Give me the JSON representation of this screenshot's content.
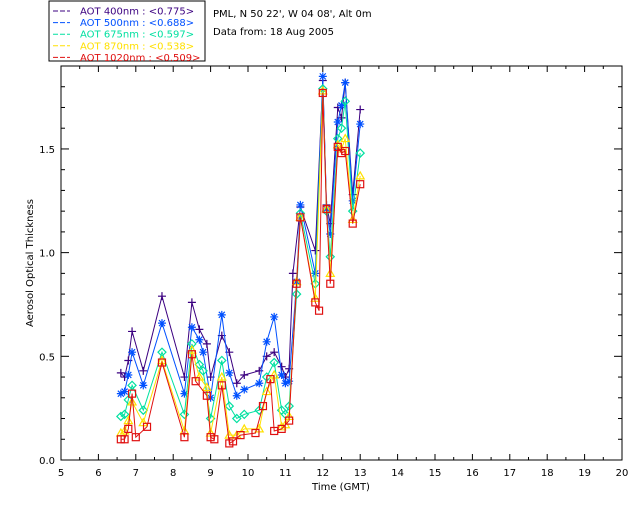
{
  "header": {
    "site": "PML, N 50 22', W 04 08', Alt 0m",
    "date": "Data from: 18 Aug 2005"
  },
  "legend": [
    {
      "label": "AOT  400nm : <0.775>",
      "color": "#3b0080"
    },
    {
      "label": "AOT  500nm : <0.688>",
      "color": "#0050ff"
    },
    {
      "label": "AOT  675nm : <0.597>",
      "color": "#00e0a0"
    },
    {
      "label": "AOT  870nm : <0.538>",
      "color": "#ffe000"
    },
    {
      "label": "AOT 1020nm : <0.509>",
      "color": "#e01010"
    }
  ],
  "chart_data": {
    "type": "line",
    "xlabel": "Time (GMT)",
    "ylabel": "Aerosol Optical Thickness",
    "xlim": [
      5,
      20
    ],
    "ylim": [
      0,
      1.9
    ],
    "xticks": [
      "5",
      "6",
      "7",
      "8",
      "9",
      "10",
      "11",
      "12",
      "13",
      "14",
      "15",
      "16",
      "17",
      "18",
      "19",
      "20"
    ],
    "yticks": [
      "0.0",
      "0.5",
      "1.0",
      "1.5"
    ],
    "series": [
      {
        "name": "AOT  400nm : <0.775>",
        "color": "#3b0080",
        "marker": "plus",
        "points": [
          [
            6.6,
            0.42
          ],
          [
            6.7,
            0.4
          ],
          [
            6.8,
            0.48
          ],
          [
            6.9,
            0.62
          ],
          [
            7.2,
            0.43
          ],
          [
            7.7,
            0.79
          ],
          [
            8.3,
            0.4
          ],
          [
            8.5,
            0.76
          ],
          [
            8.7,
            0.63
          ],
          [
            8.9,
            0.56
          ],
          [
            9.0,
            0.4
          ],
          [
            9.3,
            0.6
          ],
          [
            9.5,
            0.52
          ],
          [
            9.7,
            0.37
          ],
          [
            9.9,
            0.41
          ],
          [
            10.3,
            0.43
          ],
          [
            10.5,
            0.5
          ],
          [
            10.7,
            0.52
          ],
          [
            10.9,
            0.45
          ],
          [
            11.0,
            0.4
          ],
          [
            11.1,
            0.44
          ],
          [
            11.2,
            0.9
          ],
          [
            11.4,
            1.22
          ],
          [
            11.8,
            1.01
          ],
          [
            12.0,
            1.83
          ],
          [
            12.1,
            1.23
          ],
          [
            12.2,
            1.14
          ],
          [
            12.4,
            1.7
          ],
          [
            12.5,
            1.65
          ],
          [
            12.6,
            1.82
          ],
          [
            12.8,
            1.28
          ],
          [
            13.0,
            1.69
          ]
        ]
      },
      {
        "name": "AOT  500nm : <0.688>",
        "color": "#0050ff",
        "marker": "star",
        "points": [
          [
            6.6,
            0.32
          ],
          [
            6.7,
            0.33
          ],
          [
            6.8,
            0.41
          ],
          [
            6.9,
            0.52
          ],
          [
            7.2,
            0.36
          ],
          [
            7.7,
            0.66
          ],
          [
            8.3,
            0.32
          ],
          [
            8.5,
            0.64
          ],
          [
            8.7,
            0.58
          ],
          [
            8.8,
            0.52
          ],
          [
            9.0,
            0.3
          ],
          [
            9.3,
            0.7
          ],
          [
            9.5,
            0.42
          ],
          [
            9.7,
            0.31
          ],
          [
            9.9,
            0.34
          ],
          [
            10.3,
            0.37
          ],
          [
            10.5,
            0.57
          ],
          [
            10.7,
            0.69
          ],
          [
            10.9,
            0.41
          ],
          [
            11.0,
            0.37
          ],
          [
            11.1,
            0.38
          ],
          [
            11.3,
            0.86
          ],
          [
            11.4,
            1.23
          ],
          [
            11.8,
            0.9
          ],
          [
            12.0,
            1.85
          ],
          [
            12.1,
            1.21
          ],
          [
            12.2,
            1.09
          ],
          [
            12.4,
            1.63
          ],
          [
            12.5,
            1.71
          ],
          [
            12.6,
            1.82
          ],
          [
            12.8,
            1.25
          ],
          [
            13.0,
            1.62
          ]
        ]
      },
      {
        "name": "AOT  675nm : <0.597>",
        "color": "#00e0a0",
        "marker": "diamond",
        "points": [
          [
            6.6,
            0.21
          ],
          [
            6.7,
            0.22
          ],
          [
            6.8,
            0.29
          ],
          [
            6.9,
            0.36
          ],
          [
            7.2,
            0.24
          ],
          [
            7.7,
            0.52
          ],
          [
            8.3,
            0.22
          ],
          [
            8.5,
            0.56
          ],
          [
            8.7,
            0.46
          ],
          [
            8.8,
            0.43
          ],
          [
            9.0,
            0.2
          ],
          [
            9.3,
            0.48
          ],
          [
            9.5,
            0.26
          ],
          [
            9.7,
            0.2
          ],
          [
            9.9,
            0.22
          ],
          [
            10.3,
            0.24
          ],
          [
            10.5,
            0.4
          ],
          [
            10.7,
            0.47
          ],
          [
            10.9,
            0.24
          ],
          [
            11.0,
            0.22
          ],
          [
            11.1,
            0.26
          ],
          [
            11.3,
            0.8
          ],
          [
            11.4,
            1.19
          ],
          [
            11.8,
            0.85
          ],
          [
            12.0,
            1.79
          ],
          [
            12.1,
            1.2
          ],
          [
            12.2,
            0.98
          ],
          [
            12.4,
            1.55
          ],
          [
            12.5,
            1.6
          ],
          [
            12.6,
            1.73
          ],
          [
            12.8,
            1.2
          ],
          [
            13.0,
            1.48
          ]
        ]
      },
      {
        "name": "AOT  870nm : <0.538>",
        "color": "#ffe000",
        "marker": "triangle",
        "points": [
          [
            6.6,
            0.13
          ],
          [
            6.7,
            0.14
          ],
          [
            6.8,
            0.19
          ],
          [
            6.9,
            0.28
          ],
          [
            7.2,
            0.18
          ],
          [
            7.7,
            0.48
          ],
          [
            8.3,
            0.14
          ],
          [
            8.5,
            0.53
          ],
          [
            8.7,
            0.4
          ],
          [
            8.9,
            0.35
          ],
          [
            9.0,
            0.13
          ],
          [
            9.3,
            0.4
          ],
          [
            9.5,
            0.12
          ],
          [
            9.7,
            0.12
          ],
          [
            9.9,
            0.15
          ],
          [
            10.3,
            0.15
          ],
          [
            10.5,
            0.33
          ],
          [
            10.7,
            0.41
          ],
          [
            10.9,
            0.16
          ],
          [
            11.0,
            0.17
          ],
          [
            11.1,
            0.21
          ],
          [
            11.3,
            0.86
          ],
          [
            11.4,
            1.17
          ],
          [
            11.8,
            0.78
          ],
          [
            12.0,
            1.78
          ],
          [
            12.1,
            1.21
          ],
          [
            12.2,
            0.9
          ],
          [
            12.4,
            1.52
          ],
          [
            12.5,
            1.5
          ],
          [
            12.6,
            1.55
          ],
          [
            12.8,
            1.16
          ],
          [
            13.0,
            1.37
          ]
        ]
      },
      {
        "name": "AOT 1020nm : <0.509>",
        "color": "#e01010",
        "marker": "square",
        "points": [
          [
            6.6,
            0.1
          ],
          [
            6.7,
            0.1
          ],
          [
            6.8,
            0.15
          ],
          [
            6.9,
            0.32
          ],
          [
            7.0,
            0.11
          ],
          [
            7.3,
            0.16
          ],
          [
            7.7,
            0.47
          ],
          [
            8.3,
            0.11
          ],
          [
            8.5,
            0.51
          ],
          [
            8.6,
            0.38
          ],
          [
            8.9,
            0.31
          ],
          [
            9.0,
            0.11
          ],
          [
            9.1,
            0.1
          ],
          [
            9.3,
            0.36
          ],
          [
            9.5,
            0.08
          ],
          [
            9.6,
            0.09
          ],
          [
            9.8,
            0.12
          ],
          [
            10.2,
            0.13
          ],
          [
            10.4,
            0.26
          ],
          [
            10.6,
            0.39
          ],
          [
            10.7,
            0.14
          ],
          [
            10.9,
            0.15
          ],
          [
            11.1,
            0.19
          ],
          [
            11.3,
            0.85
          ],
          [
            11.4,
            1.17
          ],
          [
            11.8,
            0.76
          ],
          [
            11.9,
            0.72
          ],
          [
            12.0,
            1.77
          ],
          [
            12.1,
            1.21
          ],
          [
            12.2,
            0.85
          ],
          [
            12.4,
            1.51
          ],
          [
            12.5,
            1.48
          ],
          [
            12.6,
            1.49
          ],
          [
            12.8,
            1.14
          ],
          [
            13.0,
            1.33
          ]
        ]
      }
    ]
  }
}
